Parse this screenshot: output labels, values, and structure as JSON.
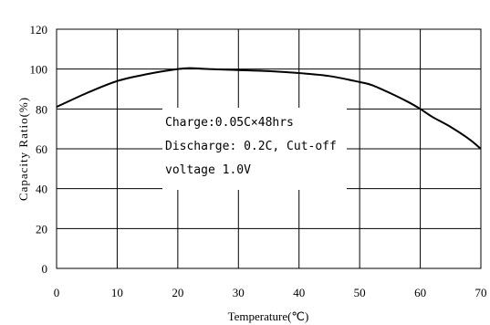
{
  "chart_data": {
    "type": "line",
    "title": "",
    "xlabel": "Temperature(℃)",
    "ylabel": "Capacity Ratio(%)",
    "xlim": [
      0,
      70
    ],
    "ylim": [
      0,
      120
    ],
    "x_ticks": [
      "0",
      "10",
      "20",
      "30",
      "40",
      "50",
      "60",
      "70"
    ],
    "y_ticks": [
      "0",
      "20",
      "40",
      "60",
      "80",
      "100",
      "120"
    ],
    "grid": true,
    "series": [
      {
        "color": "#000000",
        "x": [
          0,
          5,
          10,
          15,
          20,
          22,
          25,
          30,
          35,
          40,
          45,
          50,
          52,
          55,
          58,
          60,
          62,
          65,
          68,
          70
        ],
        "y": [
          81,
          88,
          94,
          97.5,
          100,
          100.5,
          100,
          99.5,
          99,
          98,
          96.5,
          93.5,
          92,
          88,
          83.5,
          80,
          76,
          71,
          65,
          60
        ]
      }
    ],
    "annotation_lines": [
      "Charge:0.05C×48hrs",
      "Discharge: 0.2C, Cut-off",
      "voltage 1.0V"
    ]
  }
}
